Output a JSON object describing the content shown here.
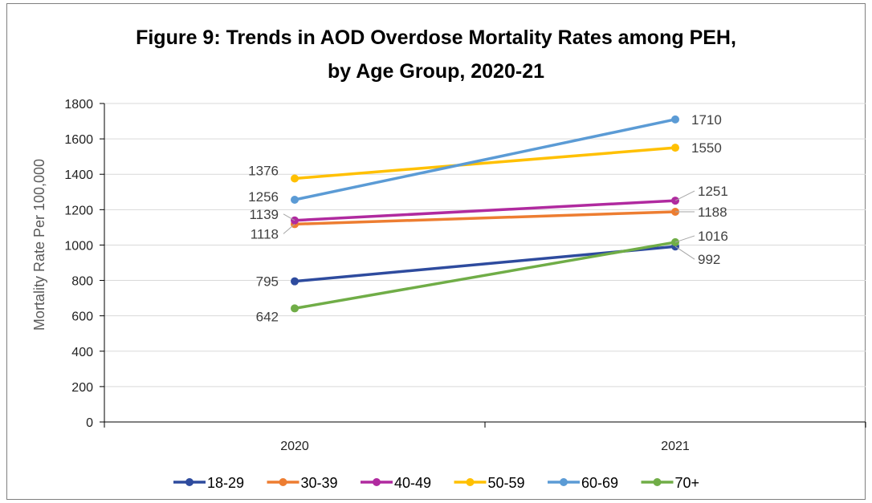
{
  "chart_data": {
    "type": "line",
    "title_line1": "Figure 9: Trends in AOD Overdose Mortality Rates among PEH,",
    "title_line2": "by Age Group, 2020-21",
    "xlabel": "",
    "ylabel": "Mortality Rate Per 100,000",
    "categories": [
      "2020",
      "2021"
    ],
    "ylim": [
      0,
      1800
    ],
    "yticks": [
      0,
      200,
      400,
      600,
      800,
      1000,
      1200,
      1400,
      1600,
      1800
    ],
    "ytick_labels": [
      "0",
      "200",
      "400",
      "600",
      "800",
      "1000",
      "1200",
      "1400",
      "1600",
      "1800"
    ],
    "grid": true,
    "legend_position": "bottom",
    "series": [
      {
        "name": "18-29",
        "color": "#2E4B9E",
        "values": [
          795,
          992
        ],
        "labels": [
          "795",
          "992"
        ]
      },
      {
        "name": "30-39",
        "color": "#ED7D31",
        "values": [
          1118,
          1188
        ],
        "labels": [
          "1118",
          "1188"
        ]
      },
      {
        "name": "40-49",
        "color": "#B02A9F",
        "values": [
          1139,
          1251
        ],
        "labels": [
          "1139",
          "1251"
        ]
      },
      {
        "name": "50-59",
        "color": "#FFC000",
        "values": [
          1376,
          1550
        ],
        "labels": [
          "1376",
          "1550"
        ]
      },
      {
        "name": "60-69",
        "color": "#5B9BD5",
        "values": [
          1256,
          1710
        ],
        "labels": [
          "1256",
          "1710"
        ]
      },
      {
        "name": "70+",
        "color": "#70AD47",
        "values": [
          642,
          1016
        ],
        "labels": [
          "642",
          "1016"
        ]
      }
    ]
  }
}
